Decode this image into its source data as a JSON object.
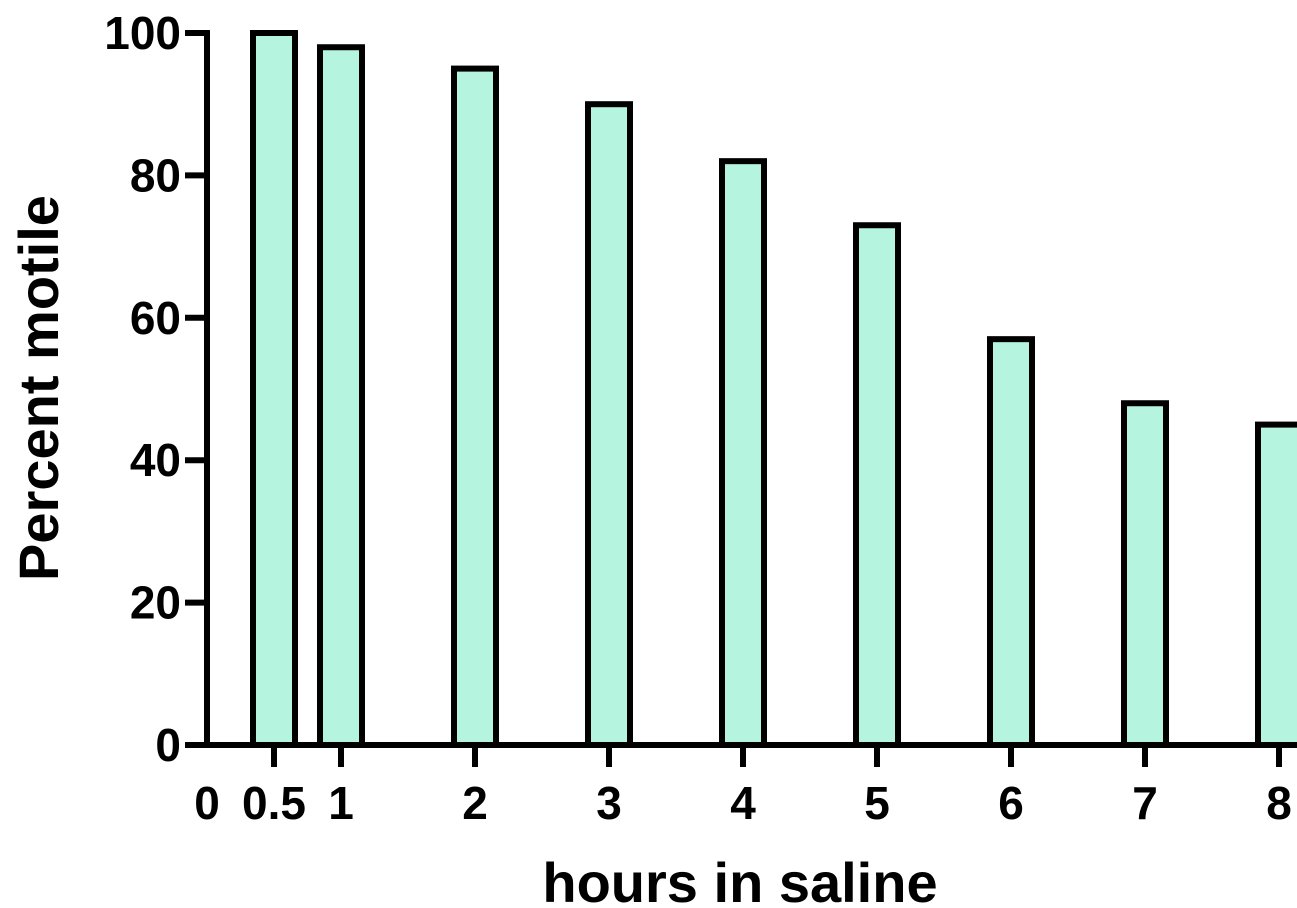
{
  "chart_data": {
    "type": "bar",
    "title": "",
    "xlabel": "hours in saline",
    "ylabel": "Percent motile",
    "x": [
      0.5,
      1,
      2,
      3,
      4,
      5,
      6,
      7,
      8
    ],
    "values": [
      100,
      98,
      95,
      90,
      82,
      73,
      57,
      48,
      45
    ],
    "xticks": [
      0,
      0.5,
      1,
      2,
      3,
      4,
      5,
      6,
      7,
      8
    ],
    "xtick_labels": [
      "0",
      "0.5",
      "1",
      "2",
      "3",
      "4",
      "5",
      "6",
      "7",
      "8"
    ],
    "yticks": [
      0,
      20,
      40,
      60,
      80,
      100
    ],
    "ytick_labels": [
      "0",
      "20",
      "40",
      "60",
      "80",
      "100"
    ],
    "xlim": [
      0,
      8
    ],
    "ylim": [
      0,
      100
    ],
    "grid": false,
    "bar_color": "#b5f5df",
    "edge_color": "#000000"
  }
}
